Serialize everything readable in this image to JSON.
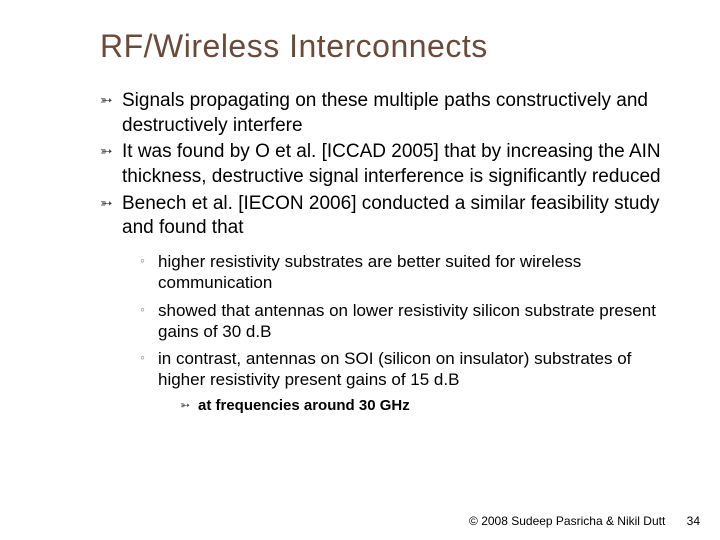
{
  "title": "RF/Wireless Interconnects",
  "bullets": {
    "b1": "Signals propagating on these multiple paths constructively and destructively interfere",
    "b2": "It was found by O et al. [ICCAD 2005] that by increasing the AIN thickness, destructive signal interference is significantly reduced",
    "b3": "Benech et al. [IECON 2006] conducted a similar feasibility study and found that"
  },
  "subbullets": {
    "s1": "higher resistivity substrates are better suited for wireless communication",
    "s2": "showed that antennas on lower resistivity silicon substrate present gains of  30 d.B",
    "s3": "in contrast, antennas on SOI (silicon on insulator) substrates of higher resistivity present gains of 15 d.B"
  },
  "subsub": {
    "ss1": "at frequencies around 30 GHz"
  },
  "footer": {
    "copyright": "© 2008 Sudeep Pasricha  & Nikil Dutt",
    "page": "34"
  },
  "colors": {
    "title": "#6b4a3a",
    "text": "#000000",
    "submarker": "#888888",
    "background": "#ffffff"
  },
  "fonts": {
    "title_size": 32,
    "body_size": 19,
    "sub_size": 17,
    "subsub_size": 15,
    "footer_size": 12
  }
}
